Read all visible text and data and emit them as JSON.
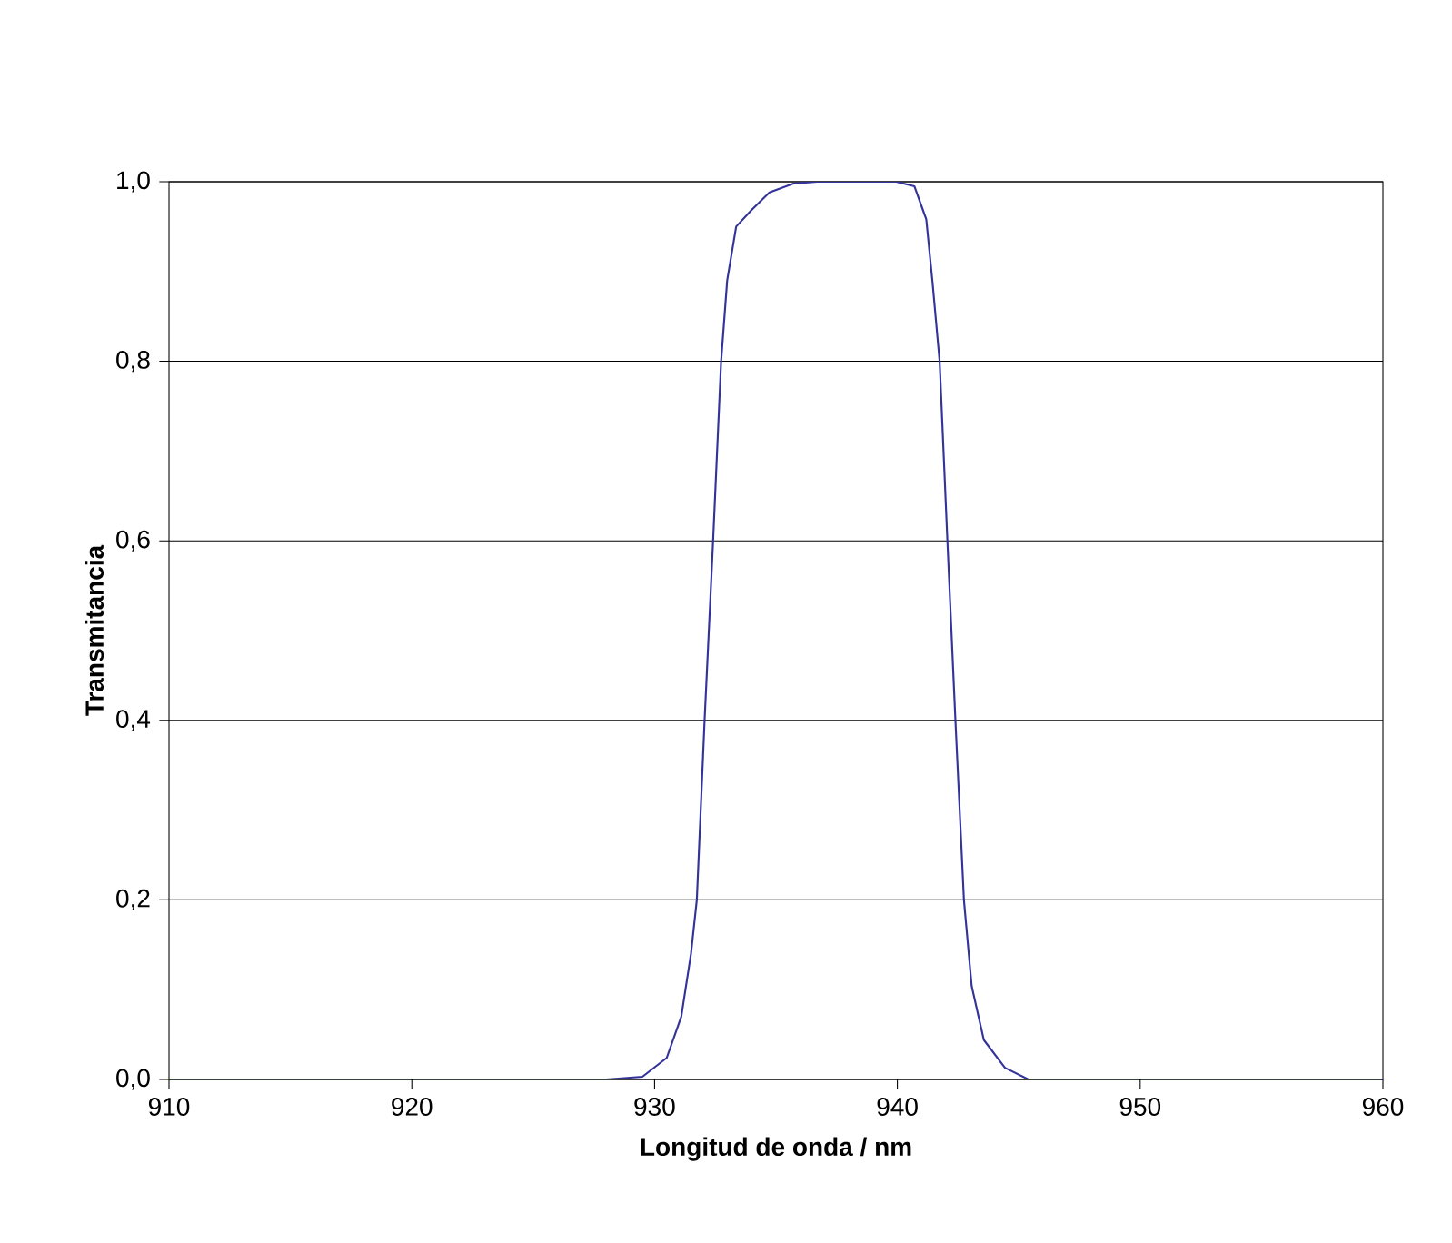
{
  "chart_data": {
    "type": "line",
    "xlabel": "Longitud de onda / nm",
    "ylabel": "Transmitancia",
    "x": [
      910,
      915,
      920,
      925,
      928,
      929.5,
      930.5,
      931.1,
      931.5,
      931.74,
      932.06,
      932.41,
      932.74,
      932.99,
      933.36,
      933.98,
      934.73,
      935.72,
      936.7,
      939.95,
      940.7,
      941.19,
      941.44,
      941.74,
      942.06,
      942.39,
      942.74,
      943.06,
      943.56,
      944.43,
      945.4,
      950,
      955,
      960
    ],
    "series": [
      {
        "color": "#333399",
        "values": [
          0,
          0,
          0,
          0,
          0,
          0.003,
          0.024,
          0.07,
          0.14,
          0.2,
          0.4,
          0.6,
          0.8,
          0.89,
          0.95,
          0.968,
          0.988,
          0.998,
          1.0,
          1.0,
          0.995,
          0.958,
          0.89,
          0.8,
          0.6,
          0.4,
          0.2,
          0.104,
          0.044,
          0.013,
          0,
          0,
          0,
          0
        ]
      }
    ],
    "xlim": [
      910,
      960
    ],
    "ylim": [
      0,
      1
    ],
    "xticks": [
      910,
      920,
      930,
      940,
      950,
      960
    ],
    "yticks": [
      {
        "value": 0,
        "label": "0,0"
      },
      {
        "value": 0.2,
        "label": "0,2"
      },
      {
        "value": 0.4,
        "label": "0,4"
      },
      {
        "value": 0.6,
        "label": "0,6"
      },
      {
        "value": 0.8,
        "label": "0,8"
      },
      {
        "value": 1,
        "label": "1,0"
      }
    ],
    "grid": "y",
    "marker": "none",
    "line_style": "solid"
  }
}
